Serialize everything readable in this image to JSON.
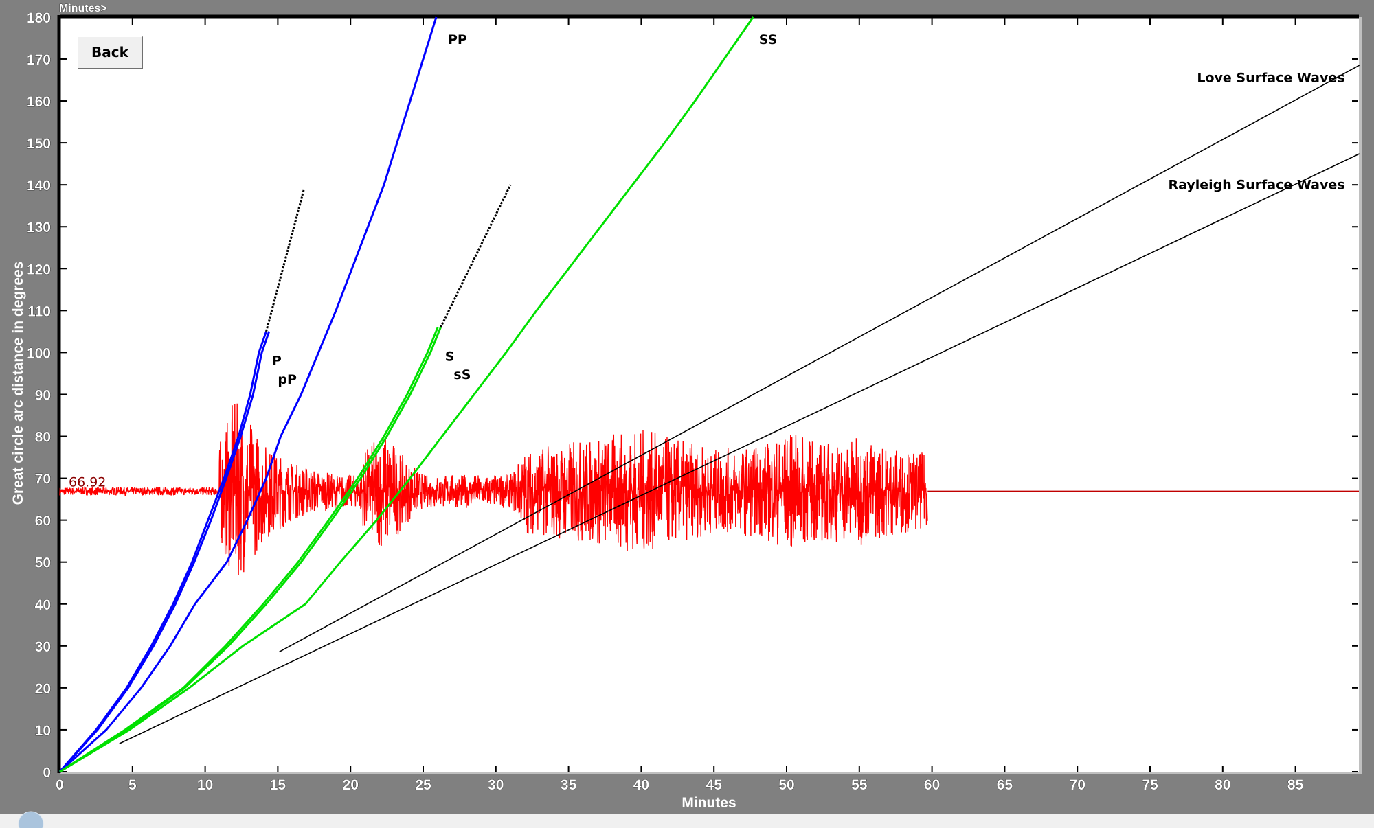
{
  "back_button": "Back",
  "top_tab_label": "Minutes>",
  "chart_data": {
    "type": "line",
    "title": "",
    "xlabel": "Minutes",
    "ylabel": "Great circle arc distance in degrees",
    "xlim": [
      0,
      89.4
    ],
    "ylim": [
      0,
      180
    ],
    "x_ticks": [
      0,
      5,
      10,
      15,
      20,
      25,
      30,
      35,
      40,
      45,
      50,
      55,
      60,
      65,
      70,
      75,
      80,
      85
    ],
    "y_ticks": [
      0,
      10,
      20,
      30,
      40,
      50,
      60,
      70,
      80,
      90,
      100,
      110,
      120,
      130,
      140,
      150,
      160,
      170,
      180
    ],
    "grid": false,
    "station_distance_label": "66.92",
    "station_distance": 66.92,
    "series": [
      {
        "name": "P",
        "color": "#0000ff",
        "points": [
          [
            0,
            0
          ],
          [
            2.5,
            10
          ],
          [
            4.6,
            20
          ],
          [
            6.3,
            30
          ],
          [
            7.8,
            40
          ],
          [
            9.1,
            50
          ],
          [
            10.2,
            60
          ],
          [
            11.3,
            70
          ],
          [
            12.3,
            80
          ],
          [
            13.1,
            90
          ],
          [
            13.7,
            100
          ],
          [
            14.2,
            105
          ]
        ]
      },
      {
        "name": "pP",
        "color": "#0000ff",
        "points": [
          [
            0,
            0
          ],
          [
            2.6,
            10
          ],
          [
            4.7,
            20
          ],
          [
            6.45,
            30
          ],
          [
            7.95,
            40
          ],
          [
            9.25,
            50
          ],
          [
            10.4,
            60
          ],
          [
            11.45,
            70
          ],
          [
            12.45,
            80
          ],
          [
            13.3,
            90
          ],
          [
            13.9,
            100
          ],
          [
            14.4,
            105
          ]
        ]
      },
      {
        "name": "PP",
        "color": "#0000ff",
        "points": [
          [
            0,
            0
          ],
          [
            3.2,
            10
          ],
          [
            5.6,
            20
          ],
          [
            7.6,
            30
          ],
          [
            9.3,
            40
          ],
          [
            11.5,
            50
          ],
          [
            12.9,
            60
          ],
          [
            14.2,
            70
          ],
          [
            15.2,
            80
          ],
          [
            16.6,
            90
          ],
          [
            17.8,
            100
          ],
          [
            19.0,
            110
          ],
          [
            20.1,
            120
          ],
          [
            21.2,
            130
          ],
          [
            22.3,
            140
          ],
          [
            23.2,
            150
          ],
          [
            24.1,
            160
          ],
          [
            25.0,
            170
          ],
          [
            25.9,
            180
          ]
        ]
      },
      {
        "name": "S",
        "color": "#00e000",
        "points": [
          [
            0,
            0
          ],
          [
            4.5,
            10
          ],
          [
            8.5,
            20
          ],
          [
            11.4,
            30
          ],
          [
            14.0,
            40
          ],
          [
            16.4,
            50
          ],
          [
            18.5,
            60
          ],
          [
            20.5,
            70
          ],
          [
            22.3,
            80
          ],
          [
            23.9,
            90
          ],
          [
            25.3,
            100
          ],
          [
            26.0,
            106
          ]
        ]
      },
      {
        "name": "sS",
        "color": "#00e000",
        "points": [
          [
            0,
            0
          ],
          [
            4.6,
            10
          ],
          [
            8.6,
            20
          ],
          [
            11.6,
            30
          ],
          [
            14.2,
            40
          ],
          [
            16.6,
            50
          ],
          [
            18.7,
            60
          ],
          [
            20.7,
            70
          ],
          [
            22.5,
            80
          ],
          [
            24.1,
            90
          ],
          [
            25.5,
            100
          ],
          [
            26.2,
            106
          ]
        ]
      },
      {
        "name": "SS",
        "color": "#00e000",
        "points": [
          [
            0,
            0
          ],
          [
            4.8,
            10
          ],
          [
            8.9,
            20
          ],
          [
            12.6,
            30
          ],
          [
            16.9,
            40
          ],
          [
            19.3,
            50
          ],
          [
            21.8,
            60
          ],
          [
            24.1,
            70
          ],
          [
            26.3,
            80
          ],
          [
            28.5,
            90
          ],
          [
            30.7,
            100
          ],
          [
            32.8,
            110
          ],
          [
            35.0,
            120
          ],
          [
            37.2,
            130
          ],
          [
            39.4,
            140
          ],
          [
            41.6,
            150
          ],
          [
            43.7,
            160
          ],
          [
            45.7,
            170
          ],
          [
            47.7,
            180
          ]
        ]
      },
      {
        "name": "P extension",
        "color": "#000000",
        "dashed": true,
        "points": [
          [
            14.2,
            105
          ],
          [
            16.8,
            139
          ]
        ]
      },
      {
        "name": "S extension",
        "color": "#000000",
        "dashed": true,
        "points": [
          [
            26.2,
            106
          ],
          [
            31.0,
            140
          ]
        ]
      },
      {
        "name": "Love Surface Waves",
        "color": "#000000",
        "points": [
          [
            15.1,
            28.6
          ],
          [
            89.4,
            168.5
          ]
        ]
      },
      {
        "name": "Rayleigh Surface Waves",
        "color": "#000000",
        "points": [
          [
            4.1,
            6.7
          ],
          [
            89.4,
            147.4
          ]
        ]
      }
    ],
    "phase_labels": [
      {
        "text": "P",
        "t": 14.6,
        "d": 97
      },
      {
        "text": "pP",
        "t": 15.0,
        "d": 92.5
      },
      {
        "text": "S",
        "t": 26.5,
        "d": 98
      },
      {
        "text": "sS",
        "t": 27.1,
        "d": 93.7
      },
      {
        "text": "PP",
        "t": 26.7,
        "d": 173.6
      },
      {
        "text": "SS",
        "t": 48.1,
        "d": 173.6
      },
      {
        "text": "Love Surface Waves",
        "t": 88.4,
        "d": 164.5,
        "anchor": "end"
      },
      {
        "text": "Rayleigh Surface Waves",
        "t": 88.4,
        "d": 139,
        "anchor": "end"
      }
    ],
    "seismogram": {
      "color": "#ff0000",
      "baseline": 66.92,
      "t_end": 59.7,
      "envelope": [
        [
          0,
          1
        ],
        [
          10.9,
          1
        ],
        [
          11,
          12
        ],
        [
          12,
          22
        ],
        [
          13,
          18
        ],
        [
          14,
          12
        ],
        [
          16,
          7
        ],
        [
          19,
          4
        ],
        [
          20.5,
          4
        ],
        [
          21,
          10
        ],
        [
          22.5,
          15
        ],
        [
          23.5,
          9
        ],
        [
          25,
          4
        ],
        [
          31,
          4
        ],
        [
          32,
          10
        ],
        [
          35,
          12
        ],
        [
          40,
          15
        ],
        [
          42,
          13
        ],
        [
          45,
          10
        ],
        [
          48,
          11
        ],
        [
          50,
          14
        ],
        [
          53,
          12
        ],
        [
          55,
          13
        ],
        [
          58,
          10
        ],
        [
          59.7,
          9
        ]
      ]
    }
  }
}
